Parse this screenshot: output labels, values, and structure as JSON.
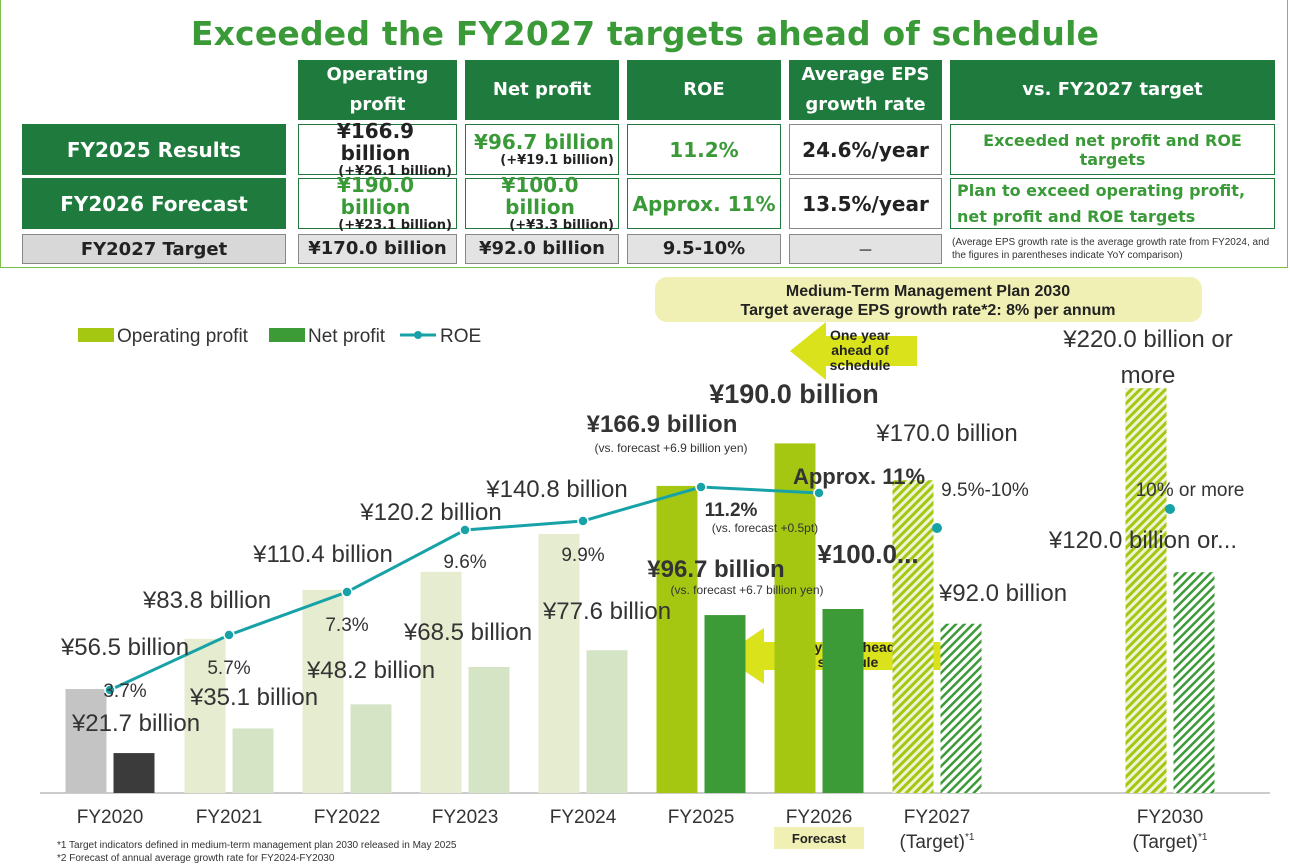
{
  "headline": "Exceeded the FY2027 targets ahead of schedule",
  "table": {
    "headers": [
      "Operating profit",
      "Net profit",
      "ROE",
      "Average EPS growth rate",
      "vs. FY2027 target"
    ],
    "rows": [
      {
        "label": "FY2025 Results",
        "op_main": "¥166.9 billion",
        "op_sub": "(+¥26.1 billion)",
        "np_main": "¥96.7 billion",
        "np_sub": "(+¥19.1 billion)",
        "roe": "11.2%",
        "eps": "24.6%/year",
        "vs": "Exceeded net profit and ROE targets"
      },
      {
        "label": "FY2026 Forecast",
        "op_main": "¥190.0 billion",
        "op_sub": "(+¥23.1 billion)",
        "np_main": "¥100.0 billion",
        "np_sub": "(+¥3.3 billion)",
        "roe": "Approx. 11%",
        "eps": "13.5%/year",
        "vs": "Plan to exceed operating profit, net profit and ROE targets"
      },
      {
        "label": "FY2027 Target",
        "op_main": "¥170.0 billion",
        "np_main": "¥92.0 billion",
        "roe": "9.5-10%",
        "eps": "－",
        "vs": "(Average EPS growth rate is the average growth rate from FY2024, and the figures in parentheses indicate YoY comparison)"
      }
    ]
  },
  "mtmp_box": {
    "line1": "Medium-Term Management Plan 2030",
    "line2": "Target average EPS growth rate*2: 8% per annum"
  },
  "arrows": {
    "one_year": "One year ahead of schedule",
    "two_years": "Two years ahead of schedule"
  },
  "forecast_tag": "Forecast",
  "footnotes": [
    "*1  Target indicators defined in medium-term management plan 2030 released in May 2025",
    "*2  Forecast of annual average growth rate for FY2024-FY2030"
  ],
  "colors": {
    "dark_green": "#1e7b3d",
    "headline_green": "#3a9a38",
    "lime": "#a5c712",
    "green": "#3c9b37",
    "teal": "#17a2a7",
    "gray": "#c4c4c4",
    "dark_gray": "#3b3b3b",
    "pale_lime": "#e2ebcb",
    "pale_green": "#d6e4c6",
    "banner": "#f1f0b4"
  },
  "chart_data": {
    "type": "bar",
    "legend": [
      "Operating profit",
      "Net profit",
      "ROE"
    ],
    "legend_position": "top-left",
    "categories": [
      "FY2020",
      "FY2021",
      "FY2022",
      "FY2023",
      "FY2024",
      "FY2025",
      "FY2026",
      "FY2027",
      "FY2030"
    ],
    "category_sublabels": [
      "",
      "",
      "",
      "",
      "",
      "",
      "",
      "(Target)*1",
      "(Target)*1"
    ],
    "series": [
      {
        "name": "Operating profit",
        "values": [
          56.5,
          83.8,
          110.4,
          120.2,
          140.8,
          166.9,
          190.0,
          170.0,
          220.0
        ],
        "labels": [
          "¥56.5 billion",
          "¥83.8 billion",
          "¥110.4 billion",
          "¥120.2 billion",
          "¥140.8 billion",
          "¥166.9 billion",
          "¥190.0 billion",
          "¥170.0 billion",
          "¥220.0 billion or more"
        ]
      },
      {
        "name": "Net profit",
        "values": [
          21.7,
          35.1,
          48.2,
          68.5,
          77.6,
          96.7,
          100.0,
          92.0,
          120.0
        ],
        "labels": [
          "¥21.7 billion",
          "¥35.1 billion",
          "¥48.2 billion",
          "¥68.5 billion",
          "¥77.6 billion",
          "¥96.7 billion",
          "¥100.0...",
          "¥92.0 billion",
          "¥120.0 billion or..."
        ]
      },
      {
        "name": "ROE",
        "values": [
          3.7,
          5.7,
          7.3,
          9.6,
          9.9,
          11.2,
          11.0,
          9.75,
          10.0
        ],
        "labels": [
          "3.7%",
          "5.7%",
          "7.3%",
          "9.6%",
          "9.9%",
          "11.2%",
          "Approx. 11%",
          "9.5%-10%",
          "10% or more"
        ]
      }
    ],
    "annotations": {
      "fy2025_op": "(vs. forecast +6.9 billion yen)",
      "fy2025_roe": "(vs. forecast +0.5pt)",
      "fy2025_np": "(vs. forecast +6.7 billion yen)"
    }
  }
}
